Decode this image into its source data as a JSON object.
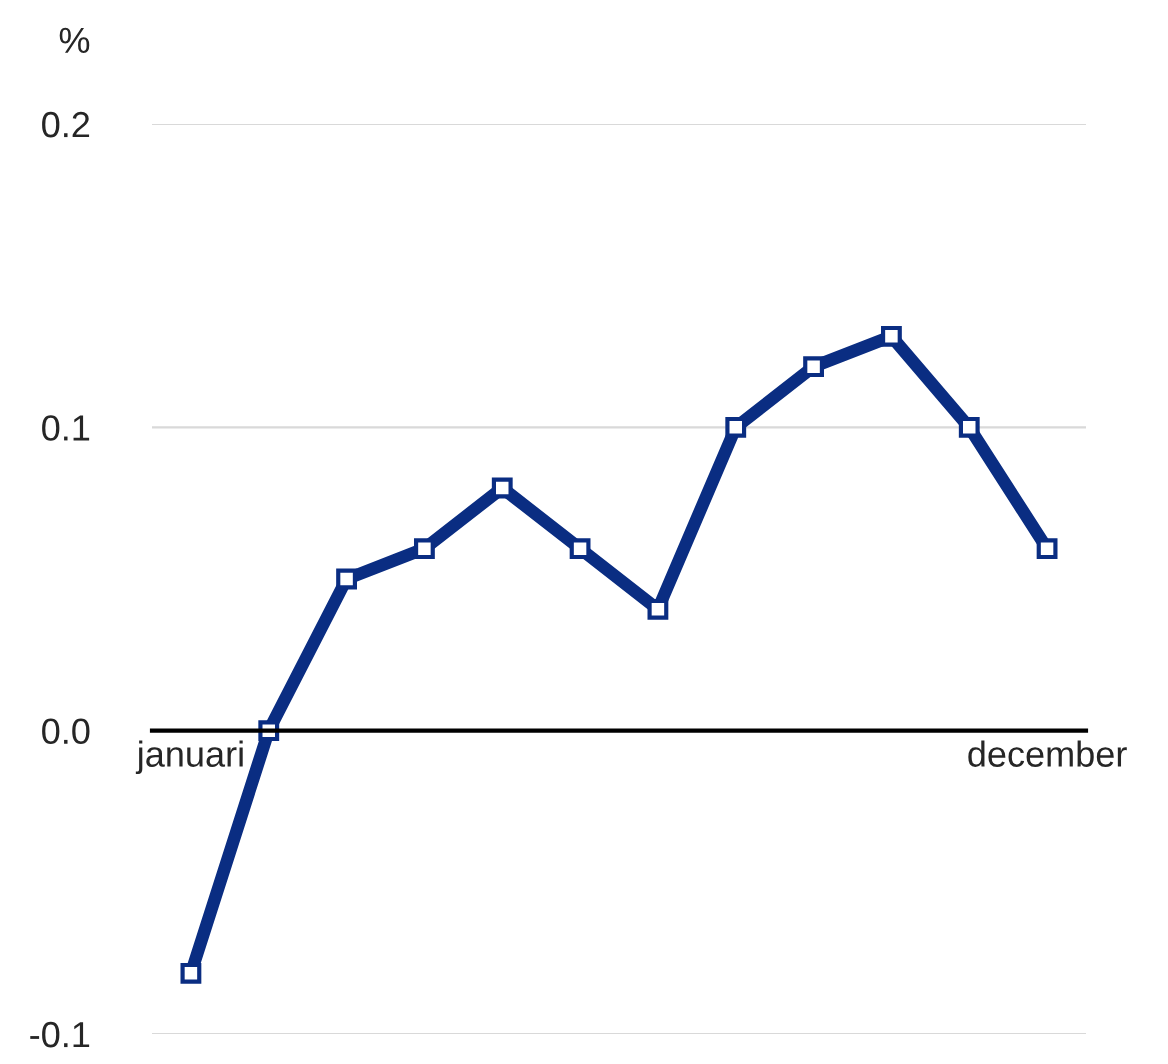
{
  "chart_data": {
    "type": "line",
    "ylabel": "%",
    "categories": [
      "januari",
      null,
      null,
      null,
      null,
      null,
      null,
      null,
      null,
      null,
      null,
      "december"
    ],
    "series": [
      {
        "color": "#0a2d82",
        "values": [
          -0.08,
          0.0,
          0.05,
          0.06,
          0.08,
          0.06,
          0.04,
          0.1,
          0.12,
          0.13,
          0.1,
          0.06
        ]
      }
    ],
    "ylim": [
      -0.1,
      0.2
    ],
    "yticks": [
      {
        "value": -0.1,
        "label": "-0.1"
      },
      {
        "value": 0,
        "label": "0.0"
      },
      {
        "value": 0.1,
        "label": "0.1"
      },
      {
        "value": 0.2,
        "label": "0.2"
      }
    ],
    "grid": "y",
    "marker": "square",
    "line_style": "solid",
    "legend": false
  }
}
